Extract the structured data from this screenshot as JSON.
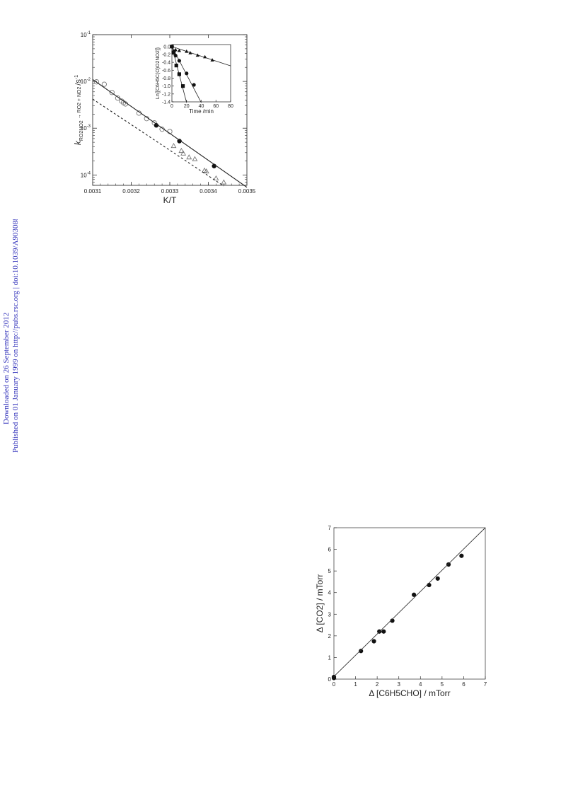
{
  "side_note": {
    "line1": "Downloaded on 26 September 2012",
    "line2": "Published on 01 January 1999 on http://pubs.rsc.org | doi:10.1039/A903088C"
  },
  "chart_data": [
    {
      "type": "scatter",
      "xlabel": "K/T",
      "ylabel": "k_RO2NO2 → RO2 + NO2 /s^-1",
      "xscale": "linear",
      "yscale": "log",
      "xlim": [
        0.0031,
        0.0035
      ],
      "ylim": [
        6e-05,
        0.1
      ],
      "x_ticks": [
        "0.0031",
        "0.0032",
        "0.0033",
        "0.0034",
        "0.0035"
      ],
      "y_ticks": [
        {
          "value": 0.1,
          "label": "10-1"
        },
        {
          "value": 0.01,
          "label": "10-2"
        },
        {
          "value": 0.001,
          "label": "10-3"
        },
        {
          "value": 0.0001,
          "label": "10-4"
        }
      ],
      "series": [
        {
          "marker": "open-circle",
          "points": [
            [
              0.00311,
              0.0098
            ],
            [
              0.00313,
              0.0087
            ],
            [
              0.00315,
              0.0058
            ],
            [
              0.003165,
              0.0044
            ],
            [
              0.003175,
              0.0038
            ],
            [
              0.00318,
              0.0035
            ],
            [
              0.003185,
              0.0033
            ],
            [
              0.00322,
              0.0021
            ],
            [
              0.00324,
              0.0016
            ],
            [
              0.00326,
              0.0013
            ],
            [
              0.00328,
              0.00095
            ],
            [
              0.0033,
              0.00085
            ]
          ]
        },
        {
          "marker": "filled-circle",
          "points": [
            [
              0.003265,
              0.00115
            ],
            [
              0.003325,
              0.00053
            ],
            [
              0.003415,
              0.000155
            ]
          ]
        },
        {
          "marker": "open-triangle",
          "points": [
            [
              0.00331,
              0.00042
            ],
            [
              0.00333,
              0.00033
            ],
            [
              0.003335,
              0.00029
            ],
            [
              0.00335,
              0.00024
            ],
            [
              0.003365,
              0.00022
            ],
            [
              0.00339,
              0.000125
            ],
            [
              0.003395,
              0.00012
            ],
            [
              0.00342,
              8.5e-05
            ],
            [
              0.00344,
              7e-05
            ]
          ]
        },
        {
          "style": "solid-line",
          "points": [
            [
              0.0031,
              0.011
            ],
            [
              0.0035,
              5.45e-05
            ]
          ]
        },
        {
          "style": "dashed-line",
          "points": [
            [
              0.0031,
              0.0042
            ],
            [
              0.00344,
              5.8e-05
            ]
          ]
        }
      ],
      "inset": {
        "type": "scatter",
        "xlabel": "Time /min",
        "ylabel": "Ln{[C6H5C(O)O2NO2]}",
        "xlim": [
          0,
          80
        ],
        "ylim": [
          -1.4,
          0.05
        ],
        "x_ticks": [
          "0",
          "20",
          "40",
          "60",
          "80"
        ],
        "y_ticks": [
          "0.0",
          "-0.2",
          "-0.4",
          "-0.6",
          "-0.8",
          "-1.0",
          "-1.2",
          "-1.4"
        ],
        "series": [
          {
            "marker": "filled-triangle",
            "points": [
              [
                0,
                0
              ],
              [
                5,
                -0.08
              ],
              [
                10,
                -0.1
              ],
              [
                20,
                -0.12
              ],
              [
                25,
                -0.16
              ],
              [
                35,
                -0.22
              ],
              [
                45,
                -0.26
              ],
              [
                55,
                -0.34
              ]
            ],
            "fit": [
              [
                0,
                0
              ],
              [
                80,
                -0.49
              ]
            ]
          },
          {
            "marker": "filled-circle",
            "points": [
              [
                0,
                0
              ],
              [
                3,
                -0.12
              ],
              [
                5,
                -0.23
              ],
              [
                10,
                -0.36
              ],
              [
                20,
                -0.68
              ],
              [
                30,
                -0.97
              ]
            ],
            "fit": [
              [
                0,
                0
              ],
              [
                40,
                -1.42
              ]
            ]
          },
          {
            "marker": "filled-square",
            "points": [
              [
                0,
                0
              ],
              [
                2,
                -0.15
              ],
              [
                6,
                -0.48
              ],
              [
                10,
                -0.7
              ],
              [
                15,
                -1.0
              ]
            ],
            "fit": [
              [
                0,
                0
              ],
              [
                20,
                -1.42
              ]
            ]
          }
        ]
      }
    },
    {
      "type": "scatter",
      "xlabel": "Δ [C6H5CHO] / mTorr",
      "ylabel": "Δ [CO2] / mTorr",
      "xlim": [
        0,
        7
      ],
      "ylim": [
        0,
        7
      ],
      "x_ticks": [
        "0",
        "1",
        "2",
        "3",
        "4",
        "5",
        "6",
        "7"
      ],
      "y_ticks": [
        "0",
        "1",
        "2",
        "3",
        "4",
        "5",
        "6",
        "7"
      ],
      "series": [
        {
          "marker": "filled-circle",
          "points": [
            [
              0,
              0.05
            ],
            [
              0,
              0.1
            ],
            [
              1.25,
              1.3
            ],
            [
              1.85,
              1.75
            ],
            [
              2.1,
              2.2
            ],
            [
              2.3,
              2.2
            ],
            [
              2.7,
              2.7
            ],
            [
              3.7,
              3.9
            ],
            [
              4.4,
              4.35
            ],
            [
              4.8,
              4.65
            ],
            [
              5.3,
              5.3
            ],
            [
              5.9,
              5.7
            ]
          ]
        },
        {
          "style": "solid-line",
          "points": [
            [
              0,
              0.12
            ],
            [
              7,
              7.0
            ]
          ]
        }
      ]
    }
  ]
}
